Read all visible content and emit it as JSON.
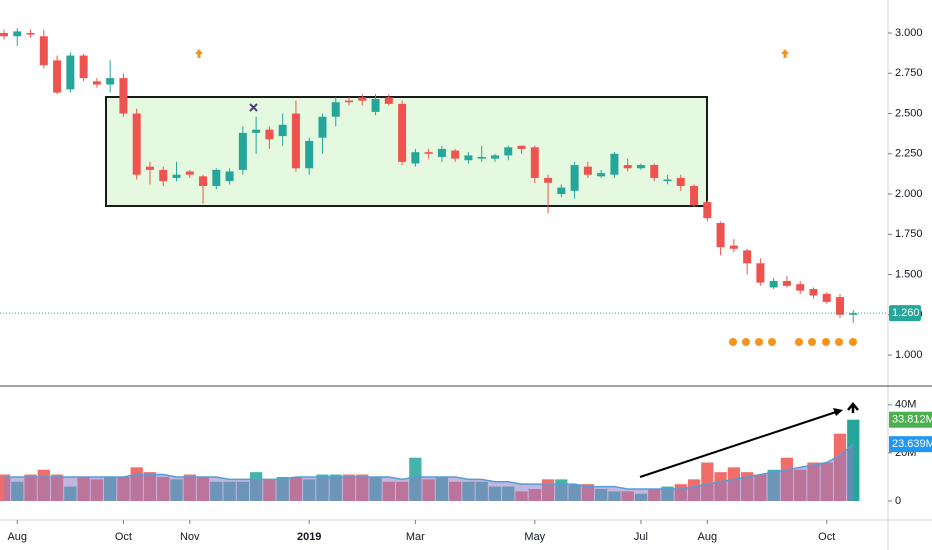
{
  "chart_data": [
    {
      "type": "candlestick",
      "categories": [
        null,
        "Aug",
        null,
        null,
        null,
        null,
        null,
        null,
        null,
        "Oct",
        null,
        null,
        null,
        null,
        "Nov",
        null,
        null,
        null,
        null,
        null,
        null,
        null,
        null,
        "2019",
        null,
        null,
        null,
        null,
        null,
        null,
        null,
        "Mar",
        null,
        null,
        null,
        null,
        null,
        null,
        null,
        null,
        "May",
        null,
        null,
        null,
        null,
        null,
        null,
        null,
        "Jul",
        null,
        null,
        null,
        null,
        "Aug",
        null,
        null,
        null,
        null,
        null,
        null,
        null,
        null,
        "Oct",
        null,
        null
      ],
      "open": [
        3.0,
        2.98,
        3.0,
        2.98,
        2.83,
        2.65,
        2.86,
        2.7,
        2.68,
        2.72,
        2.5,
        2.17,
        2.15,
        2.1,
        2.14,
        2.11,
        2.05,
        2.08,
        2.15,
        2.38,
        2.4,
        2.36,
        2.5,
        2.16,
        2.35,
        2.48,
        2.58,
        2.6,
        2.51,
        2.6,
        2.56,
        2.19,
        2.26,
        2.23,
        2.27,
        2.21,
        2.22,
        2.22,
        2.24,
        2.3,
        2.29,
        2.1,
        2.0,
        2.02,
        2.17,
        2.11,
        2.12,
        2.18,
        2.16,
        2.18,
        2.08,
        2.1,
        2.05,
        1.95,
        1.82,
        1.68,
        1.65,
        1.57,
        1.42,
        1.46,
        1.44,
        1.41,
        1.38,
        1.36,
        1.25
      ],
      "high": [
        3.02,
        3.03,
        3.02,
        3.02,
        2.86,
        2.88,
        2.87,
        2.72,
        2.83,
        2.75,
        2.53,
        2.2,
        2.17,
        2.2,
        2.15,
        2.12,
        2.16,
        2.16,
        2.42,
        2.48,
        2.42,
        2.5,
        2.58,
        2.35,
        2.5,
        2.6,
        2.6,
        2.62,
        2.62,
        2.62,
        2.58,
        2.28,
        2.28,
        2.3,
        2.28,
        2.26,
        2.3,
        2.25,
        2.3,
        2.3,
        2.3,
        2.12,
        2.06,
        2.2,
        2.2,
        2.15,
        2.26,
        2.22,
        2.19,
        2.19,
        2.12,
        2.12,
        2.06,
        1.96,
        1.83,
        1.72,
        1.66,
        1.6,
        1.48,
        1.49,
        1.46,
        1.42,
        1.39,
        1.38,
        1.28
      ],
      "low": [
        2.96,
        2.92,
        2.97,
        2.78,
        2.62,
        2.63,
        2.7,
        2.66,
        2.63,
        2.48,
        2.09,
        2.06,
        2.05,
        2.08,
        2.1,
        1.94,
        2.03,
        2.06,
        2.12,
        2.25,
        2.28,
        2.3,
        2.14,
        2.12,
        2.25,
        2.42,
        2.55,
        2.55,
        2.49,
        2.55,
        2.18,
        2.17,
        2.22,
        2.2,
        2.2,
        2.19,
        2.2,
        2.2,
        2.21,
        2.25,
        2.07,
        1.88,
        1.98,
        1.97,
        2.1,
        2.1,
        2.1,
        2.14,
        2.15,
        2.08,
        2.06,
        2.02,
        1.92,
        1.83,
        1.62,
        1.64,
        1.5,
        1.43,
        1.41,
        1.42,
        1.38,
        1.35,
        1.32,
        1.23,
        1.2
      ],
      "close": [
        2.98,
        3.01,
        2.99,
        2.8,
        2.63,
        2.86,
        2.72,
        2.68,
        2.72,
        2.5,
        2.12,
        2.15,
        2.08,
        2.12,
        2.12,
        2.05,
        2.15,
        2.14,
        2.38,
        2.4,
        2.34,
        2.43,
        2.16,
        2.33,
        2.48,
        2.57,
        2.57,
        2.58,
        2.59,
        2.56,
        2.2,
        2.26,
        2.25,
        2.28,
        2.22,
        2.24,
        2.23,
        2.24,
        2.29,
        2.28,
        2.1,
        2.07,
        2.04,
        2.18,
        2.12,
        2.13,
        2.25,
        2.16,
        2.18,
        2.1,
        2.09,
        2.05,
        1.93,
        1.85,
        1.67,
        1.66,
        1.57,
        1.45,
        1.46,
        1.43,
        1.4,
        1.37,
        1.33,
        1.25,
        1.26
      ],
      "up_color": "#26a69a",
      "down_color": "#ef5350",
      "ylim": [
        0.814,
        3.205
      ],
      "yticks": [
        {
          "value": 1.0,
          "label": "1.000"
        },
        {
          "value": 1.25,
          "label": "1.250"
        },
        {
          "value": 1.5,
          "label": "1.500"
        },
        {
          "value": 1.75,
          "label": "1.750"
        },
        {
          "value": 2.0,
          "label": "2.000"
        },
        {
          "value": 2.25,
          "label": "2.250"
        },
        {
          "value": 2.5,
          "label": "2.500"
        },
        {
          "value": 2.75,
          "label": "2.750"
        },
        {
          "value": 3.0,
          "label": "3.000"
        }
      ],
      "last_price": {
        "value": 1.26,
        "label": "1.260"
      }
    },
    {
      "type": "volume",
      "values": [
        11,
        8,
        11,
        13,
        11,
        6,
        10,
        9,
        10,
        10,
        14,
        12,
        10,
        9,
        11,
        10,
        8,
        8,
        8,
        12,
        9,
        10,
        10,
        9,
        11,
        11,
        11,
        11,
        10,
        8,
        8,
        18,
        9,
        10,
        8,
        8,
        8,
        6,
        6,
        4,
        5,
        9,
        9,
        7,
        7,
        5,
        4,
        4,
        3,
        5,
        6,
        7,
        9,
        16,
        12,
        14,
        12,
        11,
        13,
        18,
        13,
        16,
        16,
        28,
        33.812
      ],
      "value_label": "33.812M",
      "ma": [
        10,
        10,
        10,
        10,
        10,
        10,
        10,
        10,
        10,
        10,
        11,
        11,
        11,
        10,
        10,
        10,
        10,
        9,
        9,
        9,
        9,
        9,
        10,
        10,
        10,
        10,
        10,
        10,
        10,
        10,
        9,
        10,
        10,
        10,
        10,
        9,
        9,
        8,
        8,
        7,
        7,
        7,
        7,
        7,
        6,
        6,
        6,
        5,
        5,
        5,
        5,
        5,
        6,
        7,
        8,
        9,
        10,
        11,
        12,
        13,
        14,
        15,
        16,
        19,
        23.639
      ],
      "ma_label": "23.639M",
      "ma_color": "#5b9bd5",
      "ylim": [
        0,
        47
      ],
      "yticks": [
        0,
        {
          "value": 20,
          "label": "20M"
        },
        {
          "value": 40,
          "label": "40M"
        }
      ]
    }
  ]
}
